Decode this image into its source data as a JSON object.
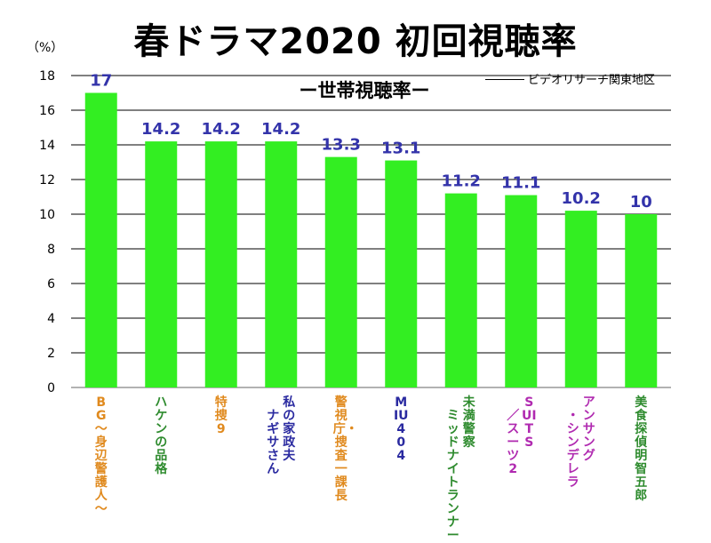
{
  "chart_data": {
    "type": "bar",
    "title": "春ドラマ2020 初回視聴率",
    "subtitle": "ー世帯視聴率ー",
    "source": "ビデオリサーチ関東地区",
    "unit": "（%）",
    "ylim": [
      0,
      18
    ],
    "yticks": [
      0,
      2,
      4,
      6,
      8,
      10,
      12,
      14,
      16,
      18
    ],
    "grid": true,
    "bar_color": "#33ee22",
    "label_color": "#3333aa",
    "categories": [
      {
        "name": "BG～身辺警護人～",
        "lines": [
          "BG～身辺警護人～"
        ],
        "color": "#e08a1e"
      },
      {
        "name": "ハケンの品格",
        "lines": [
          "ハケンの品格"
        ],
        "color": "#2e8b2e"
      },
      {
        "name": "特捜9",
        "lines": [
          "特捜9"
        ],
        "color": "#e08a1e"
      },
      {
        "name": "私の家政夫ナギサさん",
        "lines": [
          "私の家政夫",
          "ナギサさん"
        ],
        "color": "#2a2aa0"
      },
      {
        "name": "警視庁・捜査一課長",
        "lines": [
          "警視庁・捜査一課長"
        ],
        "color": "#e08a1e"
      },
      {
        "name": "MIU404",
        "lines": [
          "MIU404"
        ],
        "color": "#2a2aa0"
      },
      {
        "name": "未満警察ミッドナイトランナー",
        "lines": [
          "未満警察",
          "ミッドナイトランナー"
        ],
        "color": "#2e8b2e"
      },
      {
        "name": "SUITS／スーツ2",
        "lines": [
          "SUITS",
          "／スーツ2"
        ],
        "color": "#b02ab0"
      },
      {
        "name": "アンサング・シンデレラ",
        "lines": [
          "アンサング",
          "・シンデレラ"
        ],
        "color": "#b02ab0"
      },
      {
        "name": "美食探偵明智五郎",
        "lines": [
          "美食探偵明智五郎"
        ],
        "color": "#2e8b2e"
      }
    ],
    "values": [
      17,
      14.2,
      14.2,
      14.2,
      13.3,
      13.1,
      11.2,
      11.1,
      10.2,
      10
    ],
    "data_labels": [
      "17",
      "14.2",
      "14.2",
      "14.2",
      "13.3",
      "13.1",
      "11.2",
      "11.1",
      "10.2",
      "10"
    ]
  }
}
